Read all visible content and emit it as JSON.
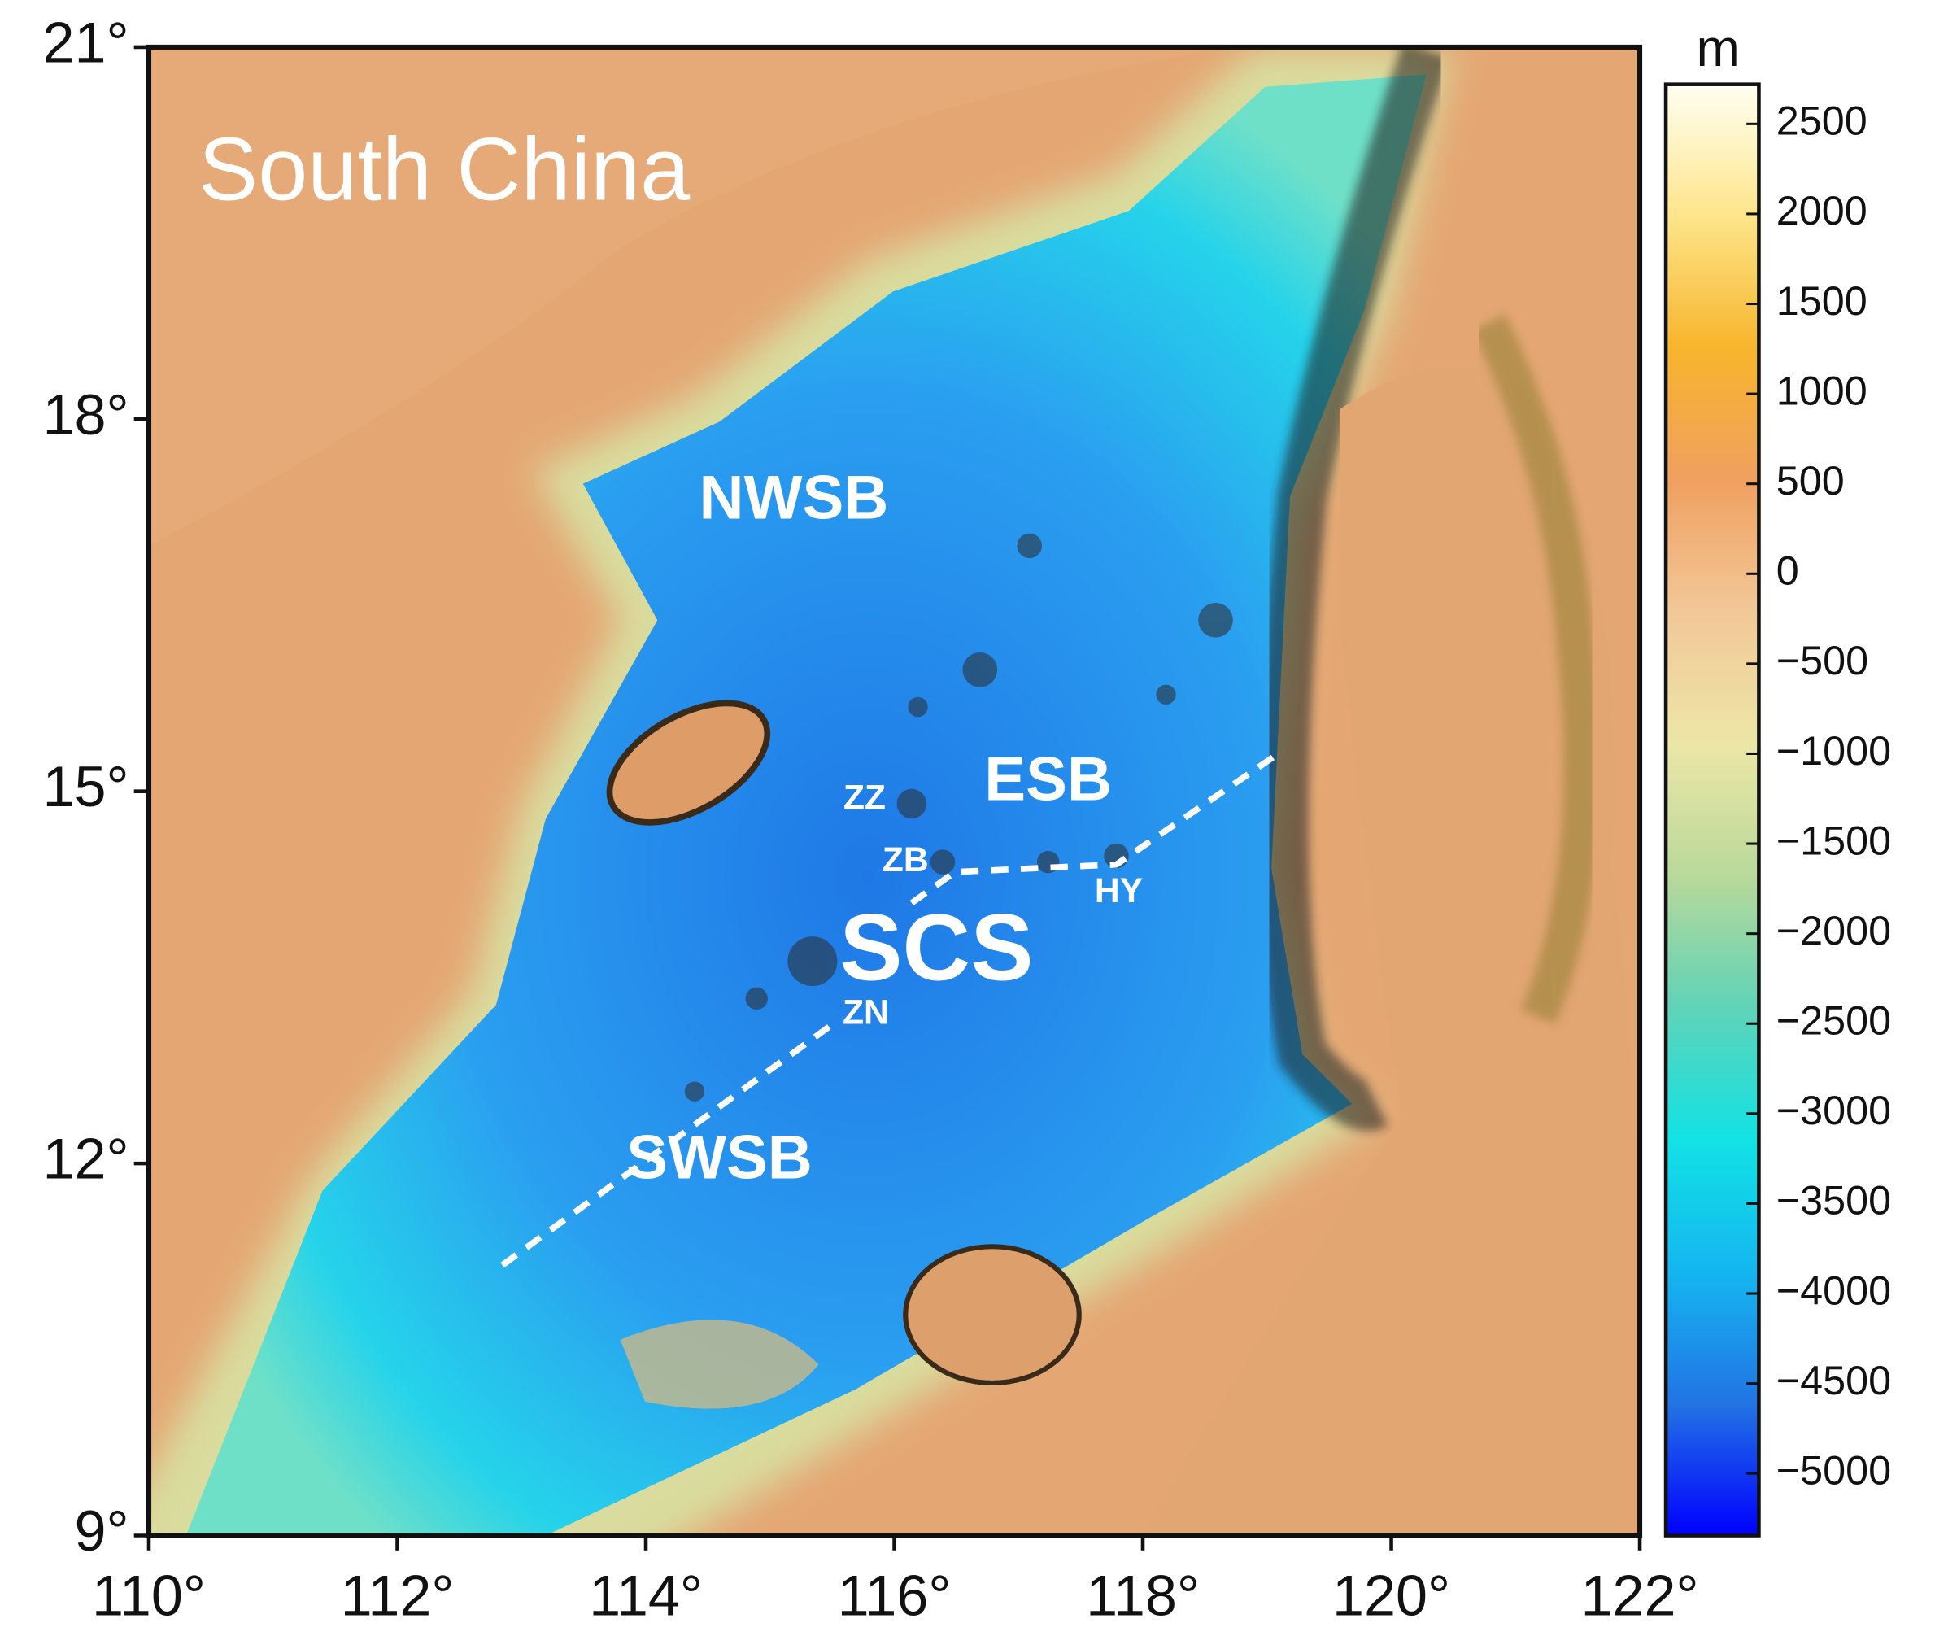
{
  "chart_data": {
    "type": "map",
    "xlim": [
      110,
      122
    ],
    "ylim": [
      9,
      21
    ],
    "xticks": [
      {
        "value": 110,
        "label": "110°"
      },
      {
        "value": 112,
        "label": "112°"
      },
      {
        "value": 114,
        "label": "114°"
      },
      {
        "value": 116,
        "label": "116°"
      },
      {
        "value": 118,
        "label": "118°"
      },
      {
        "value": 120,
        "label": "120°"
      },
      {
        "value": 122,
        "label": "122°"
      }
    ],
    "yticks": [
      {
        "value": 21,
        "label": "21°"
      },
      {
        "value": 18,
        "label": "18°"
      },
      {
        "value": 15,
        "label": "15°"
      },
      {
        "value": 12,
        "label": "12°"
      },
      {
        "value": 9,
        "label": "9°"
      }
    ],
    "annotations": [
      "South China",
      "NWSB",
      "ESB",
      "ZZ",
      "ZB",
      "HY",
      "SCS",
      "ZN",
      "SWSB"
    ],
    "colorbar": {
      "unit": "m",
      "lim": [
        -5345,
        2720
      ],
      "ticks": [
        2500,
        2000,
        1500,
        1000,
        500,
        0,
        {
          "value": -500,
          "label": "−500"
        },
        {
          "value": -1000,
          "label": "−1000"
        },
        {
          "value": -1500,
          "label": "−1500"
        },
        {
          "value": -2000,
          "label": "−2000"
        },
        {
          "value": -2500,
          "label": "−2500"
        },
        {
          "value": -3000,
          "label": "−3000"
        },
        {
          "value": -3500,
          "label": "−3500"
        },
        {
          "value": -4000,
          "label": "−4000"
        },
        {
          "value": -4500,
          "label": "−4500"
        },
        {
          "value": -5000,
          "label": "−5000"
        }
      ],
      "colors": [
        "#fffff2",
        "#fde58a",
        "#f7b52c",
        "#f0a060",
        "#f2c898",
        "#ece6a6",
        "#b9d99a",
        "#5fd3b8",
        "#12e2e4",
        "#14b6f0",
        "#2274e4",
        "#0000ff"
      ]
    }
  }
}
